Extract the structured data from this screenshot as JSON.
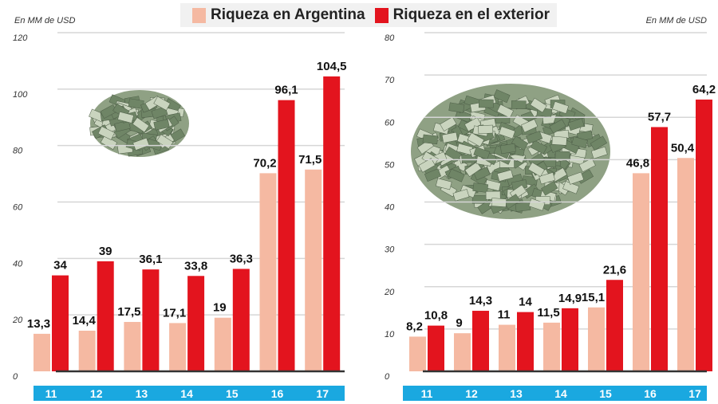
{
  "legend": {
    "argentina": "Riqueza en Argentina",
    "exterior": "Riqueza en el exterior"
  },
  "colors": {
    "argentina": "#f5b9a2",
    "exterior": "#e3141e",
    "axis_band": "#1aa8e0"
  },
  "chart_data": [
    {
      "type": "bar",
      "unit_label": "En MM de USD",
      "categories": [
        "11",
        "12",
        "13",
        "14",
        "15",
        "16",
        "17"
      ],
      "ylim": [
        0,
        120
      ],
      "yticks": [
        0,
        20,
        40,
        60,
        80,
        100,
        120
      ],
      "series": [
        {
          "name": "Riqueza en Argentina",
          "values": [
            13.3,
            14.4,
            17.5,
            17.1,
            19,
            70.2,
            71.5
          ],
          "labels": [
            "13,3",
            "14,4",
            "17,5",
            "17,1",
            "19",
            "70,2",
            "71,5"
          ]
        },
        {
          "name": "Riqueza en el exterior",
          "values": [
            34,
            39,
            36.1,
            33.8,
            36.3,
            96.1,
            104.5
          ],
          "labels": [
            "34",
            "39",
            "36,1",
            "33,8",
            "36,3",
            "96,1",
            "104,5"
          ]
        }
      ]
    },
    {
      "type": "bar",
      "unit_label": "En MM de USD",
      "categories": [
        "11",
        "12",
        "13",
        "14",
        "15",
        "16",
        "17"
      ],
      "ylim": [
        0,
        80
      ],
      "yticks": [
        0,
        10,
        20,
        30,
        40,
        50,
        60,
        70,
        80
      ],
      "series": [
        {
          "name": "Riqueza en Argentina",
          "values": [
            8.2,
            9,
            11,
            11.5,
            15.1,
            46.8,
            50.4
          ],
          "labels": [
            "8,2",
            "9",
            "11",
            "11,5",
            "15,1",
            "46,8",
            "50,4"
          ]
        },
        {
          "name": "Riqueza en el exterior",
          "values": [
            10.8,
            14.3,
            14,
            14.9,
            21.6,
            57.7,
            64.2
          ],
          "labels": [
            "10,8",
            "14,3",
            "14",
            "14,9",
            "21,6",
            "57,7",
            "64,2"
          ]
        }
      ]
    }
  ]
}
